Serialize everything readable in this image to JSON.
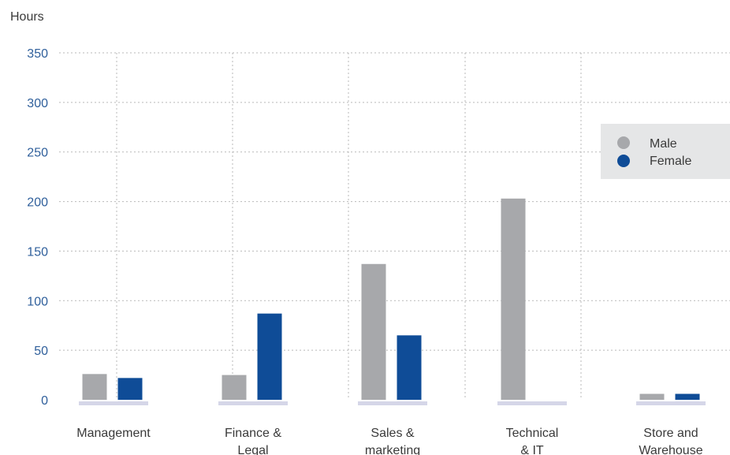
{
  "chart_data": {
    "type": "bar",
    "ylabel": "Hours",
    "xlabel": "",
    "ylim": [
      0,
      350
    ],
    "yticks": [
      0,
      50,
      100,
      150,
      200,
      250,
      300,
      350
    ],
    "grid": true,
    "legend_position": "top-right",
    "categories": [
      [
        "Management"
      ],
      [
        "Finance &",
        "Legal"
      ],
      [
        "Sales &",
        "marketing"
      ],
      [
        "Technical",
        "& IT"
      ],
      [
        "Store and",
        "Warehouse"
      ]
    ],
    "series": [
      {
        "name": "Male",
        "color": "#a7a8ab",
        "values": [
          26,
          25,
          137,
          203,
          6
        ]
      },
      {
        "name": "Female",
        "color": "#0f4c97",
        "values": [
          22,
          87,
          65,
          0,
          6
        ]
      }
    ]
  }
}
